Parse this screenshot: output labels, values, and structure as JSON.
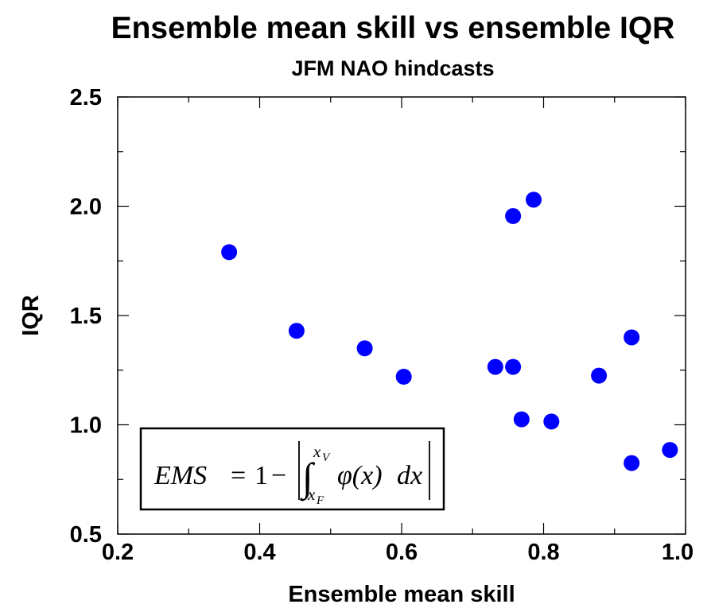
{
  "chart_data": {
    "type": "scatter",
    "title": "Ensemble mean skill vs ensemble IQR",
    "subtitle": "JFM NAO hindcasts",
    "xlabel": "Ensemble mean skill",
    "ylabel": "IQR",
    "xlim": [
      0.2,
      1.0
    ],
    "ylim": [
      0.5,
      2.5
    ],
    "xticks": [
      0.2,
      0.4,
      0.6,
      0.8,
      1.0
    ],
    "xtick_labels": [
      "0.2",
      "0.4",
      "0.6",
      "0.8",
      "1.0"
    ],
    "yticks": [
      0.5,
      1.0,
      1.5,
      2.0,
      2.5
    ],
    "ytick_labels": [
      "0.5",
      "1.0",
      "1.5",
      "2.0",
      "2.5"
    ],
    "grid": false,
    "marker_color": "#0000ff",
    "points": [
      {
        "x": 0.357,
        "y": 1.79
      },
      {
        "x": 0.452,
        "y": 1.43
      },
      {
        "x": 0.548,
        "y": 1.35
      },
      {
        "x": 0.603,
        "y": 1.22
      },
      {
        "x": 0.732,
        "y": 1.265
      },
      {
        "x": 0.757,
        "y": 1.265
      },
      {
        "x": 0.757,
        "y": 1.955
      },
      {
        "x": 0.786,
        "y": 2.03
      },
      {
        "x": 0.769,
        "y": 1.025
      },
      {
        "x": 0.811,
        "y": 1.015
      },
      {
        "x": 0.878,
        "y": 1.225
      },
      {
        "x": 0.924,
        "y": 1.4
      },
      {
        "x": 0.924,
        "y": 0.825
      },
      {
        "x": 0.978,
        "y": 0.885
      }
    ],
    "annotation": {
      "lhs": "EMS",
      "equals": "=",
      "one": "1",
      "minus": "−",
      "integral": "∫",
      "upper_limit": "x",
      "upper_sub": "V",
      "lower_limit": "x",
      "lower_sub": "F",
      "integrand": "φ(x)",
      "differential": "dx"
    }
  }
}
